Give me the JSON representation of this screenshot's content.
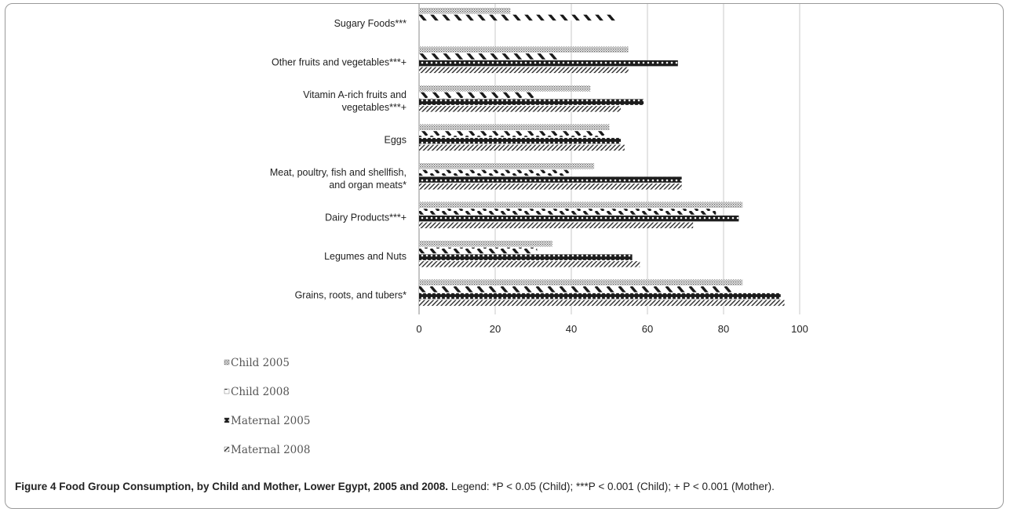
{
  "chart_data": {
    "type": "bar",
    "orientation": "horizontal",
    "categories": [
      "Sugary Foods***",
      "Other fruits and vegetables***+",
      "Vitamin A-rich fruits and vegetables***+",
      "Eggs",
      "Meat, poultry, fish and shellfish, and organ meats*",
      "Dairy Products***+",
      "Legumes and Nuts",
      "Grains, roots, and tubers*"
    ],
    "category_lines": [
      [
        "Sugary Foods***"
      ],
      [
        "Other fruits and vegetables***+"
      ],
      [
        "Vitamin A-rich fruits and",
        "vegetables***+"
      ],
      [
        "Eggs"
      ],
      [
        "Meat, poultry, fish and shellfish,",
        "and organ meats*"
      ],
      [
        "Dairy Products***+"
      ],
      [
        "Legumes and Nuts"
      ],
      [
        "Grains, roots, and tubers*"
      ]
    ],
    "series": [
      {
        "name": "Child 2005",
        "values": [
          24,
          55,
          45,
          50,
          46,
          85,
          35,
          85
        ]
      },
      {
        "name": "Child 2008",
        "values": [
          52,
          37,
          31,
          49,
          40,
          78,
          31,
          82
        ]
      },
      {
        "name": "Maternal 2005",
        "values": [
          null,
          68,
          59,
          53,
          69,
          84,
          56,
          95
        ]
      },
      {
        "name": "Maternal 2008",
        "values": [
          null,
          55,
          53,
          54,
          69,
          72,
          58,
          96
        ]
      }
    ],
    "xlim": [
      0,
      100
    ],
    "xticks": [
      "0",
      "20",
      "40",
      "60",
      "80",
      "100"
    ],
    "grid": true,
    "legend_position": "bottom-left"
  },
  "caption": {
    "label": "Figure 4 Food Group Consumption, by Child and Mother, Lower Egypt, 2005 and 2008.",
    "text": " Legend: *P < 0.05 (Child); ***P < 0.001 (Child); + P < 0.001 (Mother)."
  }
}
